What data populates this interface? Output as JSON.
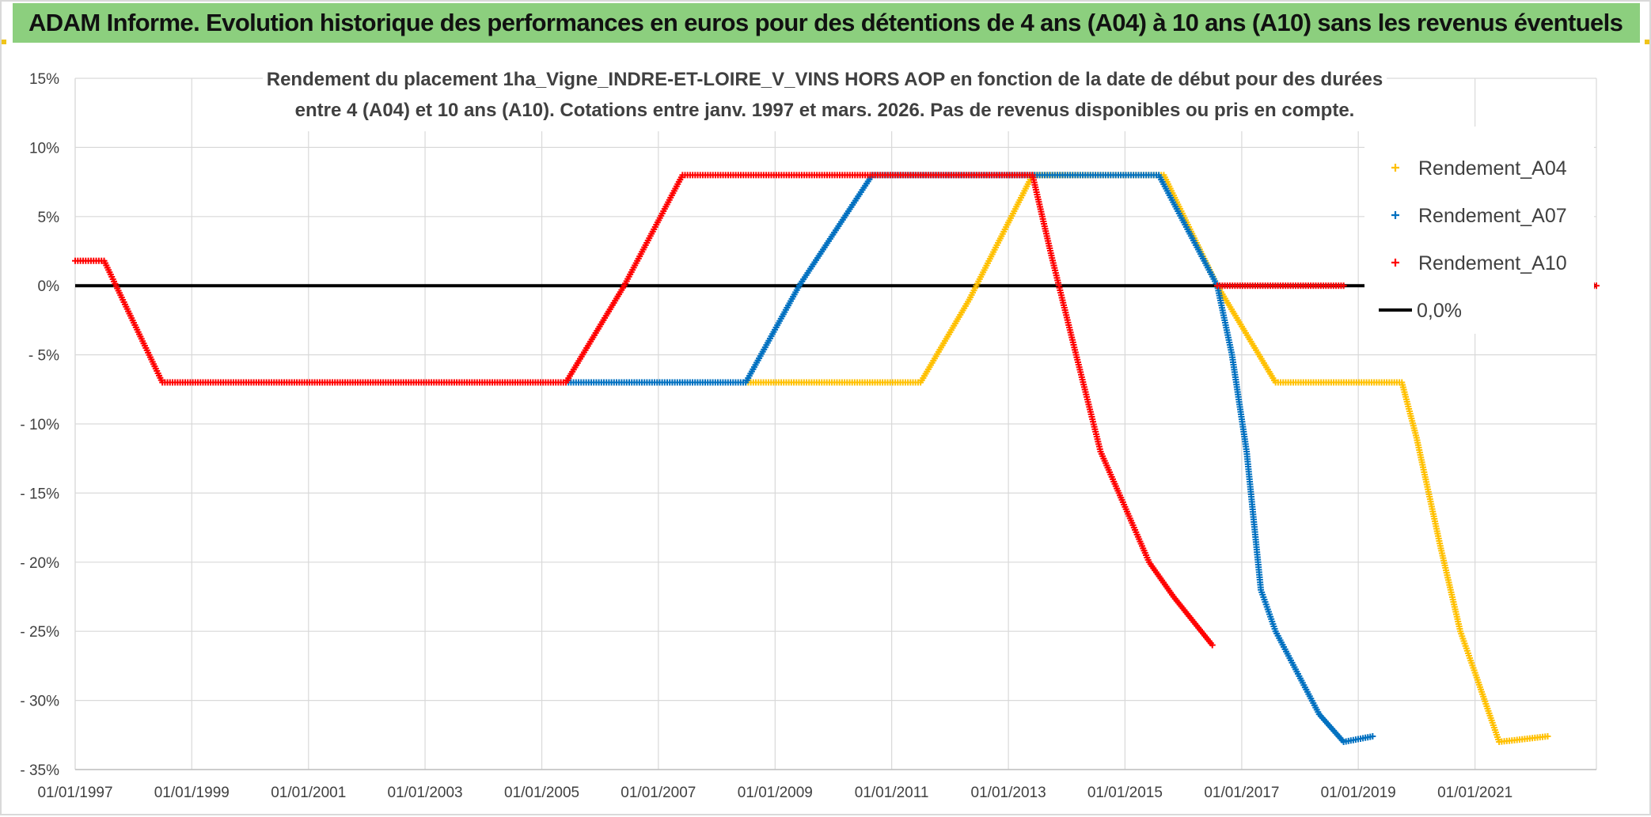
{
  "banner": {
    "text": "ADAM Informe. Evolution historique des performances en euros pour des détentions de 4 ans (A04) à 10 ans (A10) sans les revenus éventuels"
  },
  "colors": {
    "banner_bg": "#8ccf7e",
    "A04": "#ffc000",
    "A07": "#0070c0",
    "A10": "#ff0000",
    "zero_line": "#000000"
  },
  "chart_data": {
    "type": "scatter",
    "title_lines": [
      "Rendement du placement 1ha_Vigne_INDRE-ET-LOIRE_V_VINS HORS AOP en fonction de la date de début pour des durées",
      "entre 4 (A04) et 10 ans (A10). Cotations entre janv. 1997 et mars. 2026. Pas de revenus disponibles ou pris en compte."
    ],
    "x_is_date": true,
    "xlim": [
      "1997-01-01",
      "2023-01-31"
    ],
    "ylim": [
      -35,
      15
    ],
    "x_tick_labels": [
      "01/01/1997",
      "01/01/1999",
      "01/01/2001",
      "01/01/2003",
      "01/01/2005",
      "01/01/2007",
      "01/01/2009",
      "01/01/2011",
      "01/01/2013",
      "01/01/2015",
      "01/01/2017",
      "01/01/2019",
      "01/01/2021"
    ],
    "x_tick_dates": [
      "1997-01-01",
      "1999-01-01",
      "2001-01-01",
      "2003-01-01",
      "2005-01-01",
      "2007-01-01",
      "2009-01-01",
      "2011-01-01",
      "2013-01-01",
      "2015-01-01",
      "2017-01-01",
      "2019-01-01",
      "2021-01-01"
    ],
    "y_ticks": [
      15,
      10,
      5,
      0,
      -5,
      -10,
      -15,
      -20,
      -25,
      -30,
      -35
    ],
    "y_tick_labels": [
      "15%",
      "10%",
      "5%",
      "0%",
      "- 5%",
      "- 10%",
      "- 15%",
      "- 20%",
      "- 25%",
      "- 30%",
      "- 35%"
    ],
    "grid": true,
    "legend_position": "right",
    "zero_line_label": "0,0%",
    "series": [
      {
        "name": "Rendement_A04",
        "color_key": "A04",
        "points": [
          [
            "2008-07-01",
            -7.0
          ],
          [
            "2011-07-01",
            -7.0
          ],
          [
            "2012-05-01",
            -1.0
          ],
          [
            "2013-06-01",
            8.0
          ],
          [
            "2015-09-01",
            8.0
          ],
          [
            "2016-08-01",
            0.0
          ],
          [
            "2017-08-01",
            -7.0
          ],
          [
            "2019-10-01",
            -7.0
          ],
          [
            "2020-01-01",
            -11.0
          ],
          [
            "2020-06-01",
            -19.0
          ],
          [
            "2020-10-01",
            -25.0
          ],
          [
            "2021-01-01",
            -28.0
          ],
          [
            "2021-06-01",
            -33.0
          ],
          [
            "2022-04-01",
            -32.6
          ]
        ]
      },
      {
        "name": "Rendement_A07",
        "color_key": "A07",
        "points": [
          [
            "2005-06-01",
            -7.0
          ],
          [
            "2008-07-01",
            -7.0
          ],
          [
            "2009-06-01",
            0.0
          ],
          [
            "2010-09-01",
            8.0
          ],
          [
            "2015-08-01",
            8.0
          ],
          [
            "2016-08-01",
            0.0
          ],
          [
            "2016-11-01",
            -5.0
          ],
          [
            "2017-02-01",
            -12.0
          ],
          [
            "2017-05-01",
            -22.0
          ],
          [
            "2017-08-01",
            -25.0
          ],
          [
            "2018-05-01",
            -31.0
          ],
          [
            "2018-10-01",
            -33.0
          ],
          [
            "2019-04-01",
            -32.6
          ]
        ]
      },
      {
        "name": "Rendement_A10",
        "color_key": "A10",
        "points": [
          [
            "1997-01-01",
            1.8
          ],
          [
            "1997-07-01",
            1.8
          ],
          [
            "1998-07-01",
            -7.0
          ],
          [
            "2005-06-01",
            -7.0
          ],
          [
            "2006-06-01",
            0.0
          ],
          [
            "2007-06-01",
            8.0
          ],
          [
            "2013-06-01",
            8.0
          ],
          [
            "2013-10-01",
            2.0
          ],
          [
            "2014-03-01",
            -5.0
          ],
          [
            "2014-08-01",
            -12.0
          ],
          [
            "2015-01-01",
            -16.0
          ],
          [
            "2015-06-01",
            -20.0
          ],
          [
            "2015-11-01",
            -22.5
          ],
          [
            "2016-07-01",
            -26.0
          ]
        ]
      },
      {
        "name": "Rendement_A10",
        "color_key": "A10",
        "legend": false,
        "points": [
          [
            "2016-08-01",
            0.0
          ],
          [
            "2018-10-01",
            0.0
          ]
        ]
      },
      {
        "name": "Rendement_A10",
        "color_key": "A10",
        "legend": false,
        "points": [
          [
            "2023-01-01",
            0.0
          ],
          [
            "2023-01-31",
            0.0
          ]
        ]
      }
    ]
  }
}
